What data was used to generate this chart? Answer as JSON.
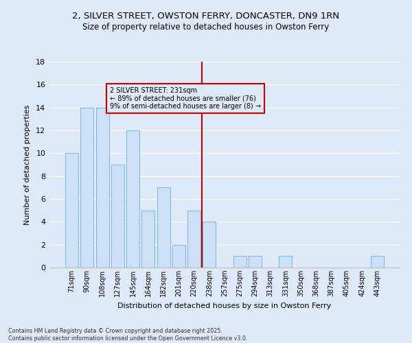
{
  "title1": "2, SILVER STREET, OWSTON FERRY, DONCASTER, DN9 1RN",
  "title2": "Size of property relative to detached houses in Owston Ferry",
  "xlabel": "Distribution of detached houses by size in Owston Ferry",
  "ylabel": "Number of detached properties",
  "categories": [
    "71sqm",
    "90sqm",
    "108sqm",
    "127sqm",
    "145sqm",
    "164sqm",
    "182sqm",
    "201sqm",
    "220sqm",
    "238sqm",
    "257sqm",
    "275sqm",
    "294sqm",
    "313sqm",
    "331sqm",
    "350sqm",
    "368sqm",
    "387sqm",
    "405sqm",
    "424sqm",
    "443sqm"
  ],
  "values": [
    10,
    14,
    14,
    9,
    12,
    5,
    7,
    2,
    5,
    4,
    0,
    1,
    1,
    0,
    1,
    0,
    0,
    0,
    0,
    0,
    1
  ],
  "bar_color": "#cce0f5",
  "bar_edge_color": "#7db4e0",
  "background_color": "#deeaf8",
  "grid_color": "#ffffff",
  "ref_line_x": 8.5,
  "ref_line_color": "#cc0000",
  "annotation_text": "2 SILVER STREET: 231sqm\n← 89% of detached houses are smaller (76)\n9% of semi-detached houses are larger (8) →",
  "footnote": "Contains HM Land Registry data © Crown copyright and database right 2025.\nContains public sector information licensed under the Open Government Licence v3.0.",
  "ylim": [
    0,
    18
  ],
  "yticks": [
    0,
    2,
    4,
    6,
    8,
    10,
    12,
    14,
    16,
    18
  ]
}
